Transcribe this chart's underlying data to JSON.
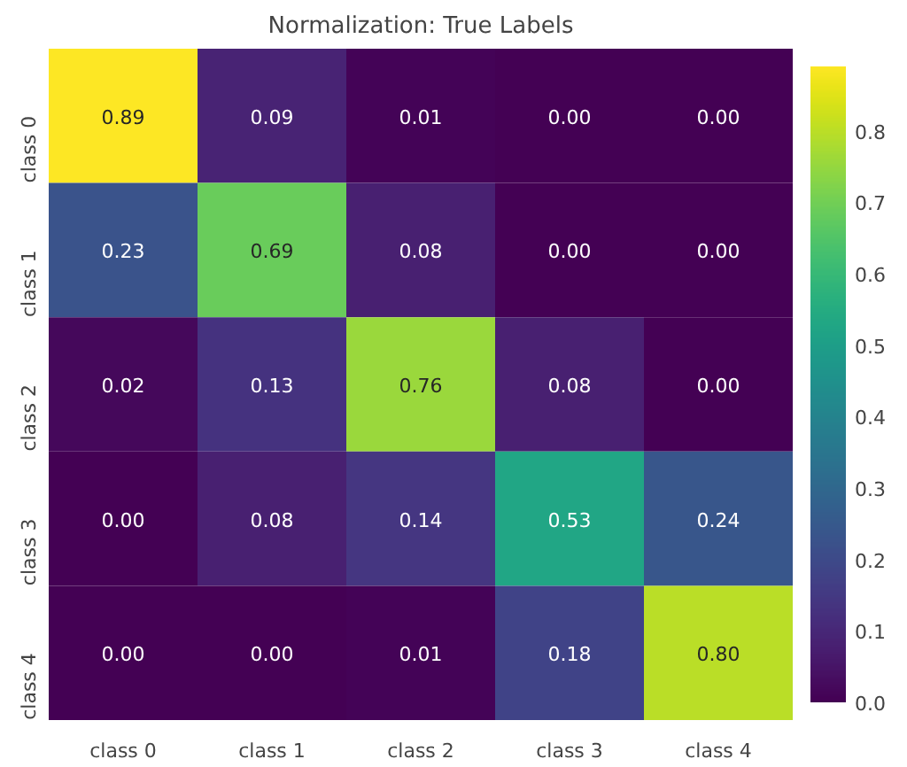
{
  "chart_data": {
    "type": "heatmap",
    "title": "Normalization: True Labels",
    "categories": [
      "class 0",
      "class 1",
      "class 2",
      "class 3",
      "class 4"
    ],
    "y_categories": [
      "class 0",
      "class 1",
      "class 2",
      "class 3",
      "class 4"
    ],
    "cells": [
      [
        0.89,
        0.09,
        0.01,
        0.0,
        0.0
      ],
      [
        0.23,
        0.69,
        0.08,
        0.0,
        0.0
      ],
      [
        0.02,
        0.13,
        0.76,
        0.08,
        0.0
      ],
      [
        0.0,
        0.08,
        0.14,
        0.53,
        0.24
      ],
      [
        0.0,
        0.0,
        0.01,
        0.18,
        0.8
      ]
    ],
    "cell_labels": [
      [
        "0.89",
        "0.09",
        "0.01",
        "0.00",
        "0.00"
      ],
      [
        "0.23",
        "0.69",
        "0.08",
        "0.00",
        "0.00"
      ],
      [
        "0.02",
        "0.13",
        "0.76",
        "0.08",
        "0.00"
      ],
      [
        "0.00",
        "0.08",
        "0.14",
        "0.53",
        "0.24"
      ],
      [
        "0.00",
        "0.00",
        "0.01",
        "0.18",
        "0.80"
      ]
    ],
    "clim": [
      0.0,
      0.89
    ],
    "cticks": [
      {
        "value": 0.0,
        "label": "0.0"
      },
      {
        "value": 0.1,
        "label": "0.1"
      },
      {
        "value": 0.2,
        "label": "0.2"
      },
      {
        "value": 0.3,
        "label": "0.3"
      },
      {
        "value": 0.4,
        "label": "0.4"
      },
      {
        "value": 0.5,
        "label": "0.5"
      },
      {
        "value": 0.6,
        "label": "0.6"
      },
      {
        "value": 0.7,
        "label": "0.7"
      },
      {
        "value": 0.8,
        "label": "0.8"
      }
    ]
  }
}
